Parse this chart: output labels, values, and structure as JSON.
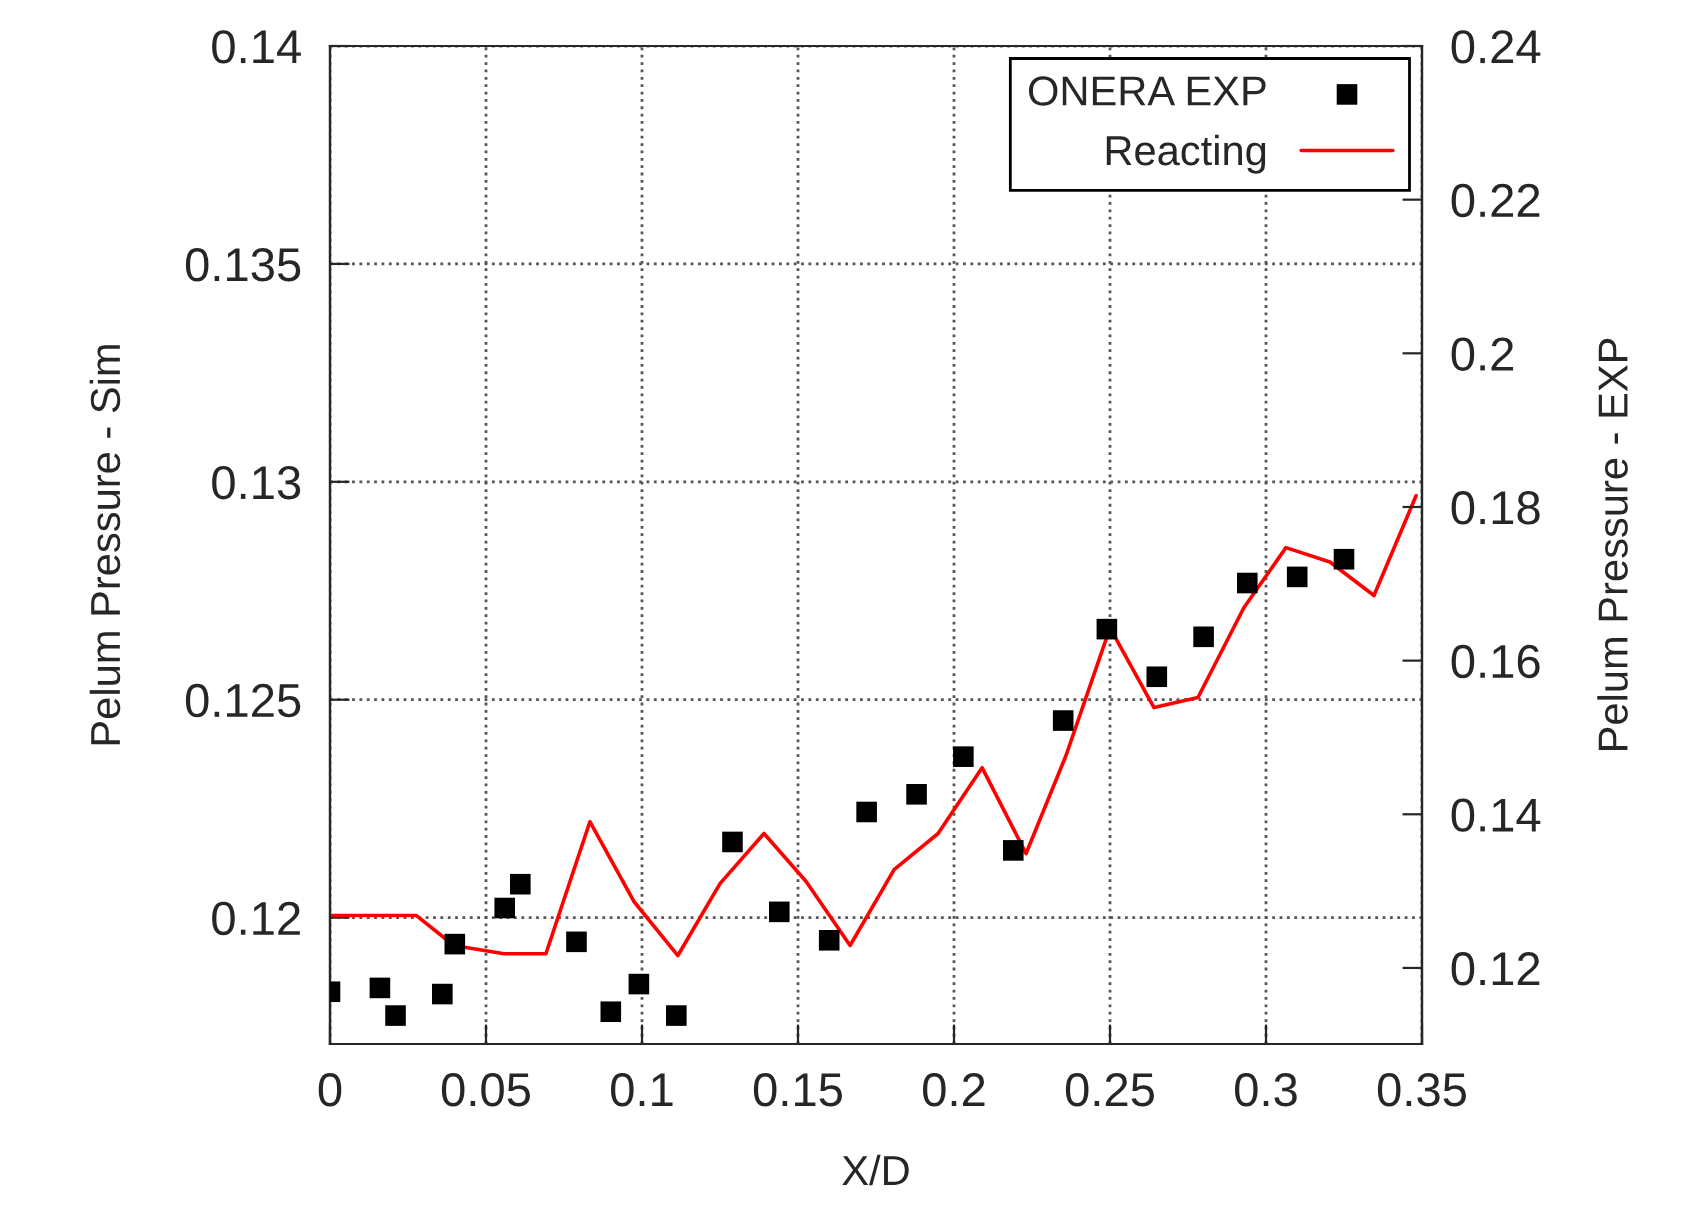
{
  "chart_data": {
    "type": "line",
    "xlabel": "X/D",
    "ylabel": "Pelum Pressure - Sim",
    "y2label": "Pelum Pressure - EXP",
    "xlim": [
      0,
      0.35
    ],
    "xticks": [
      0,
      0.05,
      0.1,
      0.15,
      0.2,
      0.25,
      0.3,
      0.35
    ],
    "ylim": [
      0.1171,
      0.14
    ],
    "yticks": [
      0.12,
      0.125,
      0.13,
      0.135,
      0.14
    ],
    "y2lim": [
      0.1101,
      0.24
    ],
    "y2ticks": [
      0.12,
      0.14,
      0.16,
      0.18,
      0.2,
      0.22,
      0.24
    ],
    "grid": true,
    "legend": "top right",
    "series": [
      {
        "name": "ONERA EXP",
        "type": "scatter",
        "axis": "y2",
        "marker": "square",
        "color": "#000000",
        "x": [
          0,
          0.016,
          0.021,
          0.036,
          0.04,
          0.056,
          0.061,
          0.079,
          0.09,
          0.099,
          0.111,
          0.129,
          0.144,
          0.16,
          0.172,
          0.188,
          0.203,
          0.219,
          0.235,
          0.249,
          0.265,
          0.28,
          0.294,
          0.31,
          0.325
        ],
        "values": [
          0.1169,
          0.1174,
          0.1138,
          0.1166,
          0.1231,
          0.1278,
          0.1309,
          0.1234,
          0.1143,
          0.1179,
          0.1138,
          0.1364,
          0.1273,
          0.1236,
          0.1403,
          0.1426,
          0.1475,
          0.1353,
          0.1522,
          0.1641,
          0.1579,
          0.1631,
          0.1701,
          0.1709,
          0.1732
        ]
      },
      {
        "name": "Reacting",
        "color": "#ff0000",
        "x": [
          0,
          0.0276,
          0.0397,
          0.0558,
          0.0692,
          0.0833,
          0.0974,
          0.1115,
          0.125,
          0.1391,
          0.1526,
          0.1667,
          0.1808,
          0.1949,
          0.209,
          0.2231,
          0.2359,
          0.25,
          0.2641,
          0.2782,
          0.2929,
          0.3064,
          0.3205,
          0.3346,
          0.3481
        ],
        "values": [
          0.12005,
          0.12005,
          0.11936,
          0.11917,
          0.11917,
          0.1222,
          0.12037,
          0.11913,
          0.12078,
          0.12193,
          0.12083,
          0.11936,
          0.1211,
          0.12193,
          0.12344,
          0.12147,
          0.12372,
          0.12665,
          0.12482,
          0.12505,
          0.12711,
          0.12849,
          0.12816,
          0.12739,
          0.12968
        ]
      }
    ]
  }
}
